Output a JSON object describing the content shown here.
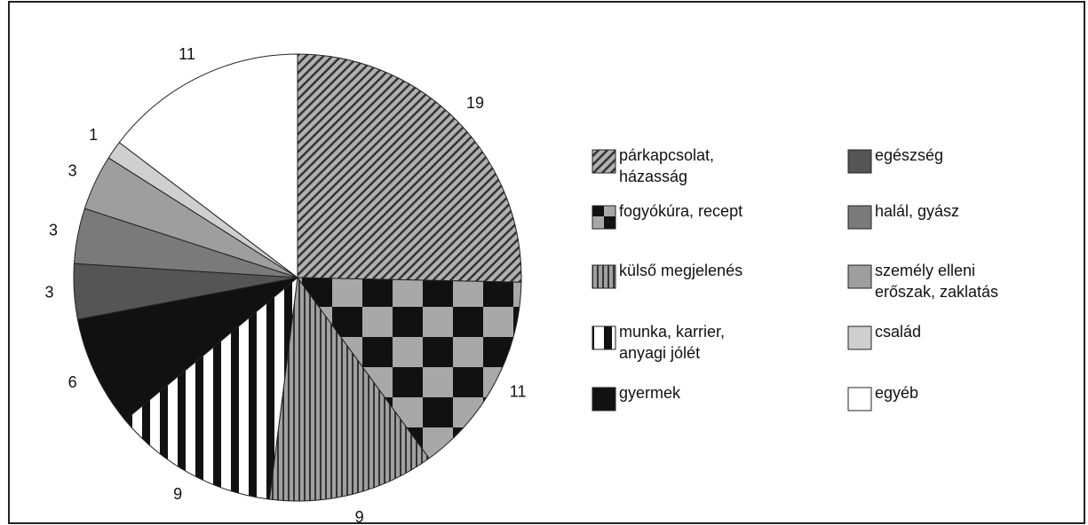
{
  "chart_data": {
    "type": "pie",
    "labels": [
      [
        "párkapcsolat,",
        "házasság"
      ],
      [
        "fogyókúra, recept"
      ],
      [
        "külső megjelenés"
      ],
      [
        "munka, karrier,",
        "anyagi jólét"
      ],
      [
        "gyermek"
      ],
      [
        "egészség"
      ],
      [
        "halál, gyász"
      ],
      [
        "személy elleni",
        "erőszak, zaklatás"
      ],
      [
        "család"
      ],
      [
        "egyéb"
      ]
    ],
    "values": [
      19,
      11,
      9,
      9,
      6,
      3,
      3,
      3,
      1,
      11
    ],
    "fills": [
      "hatch",
      "checker",
      "stripes",
      "bars",
      "#111111",
      "#555555",
      "#7a7a7a",
      "#9e9e9e",
      "#cfcfcf",
      "#ffffff"
    ]
  }
}
